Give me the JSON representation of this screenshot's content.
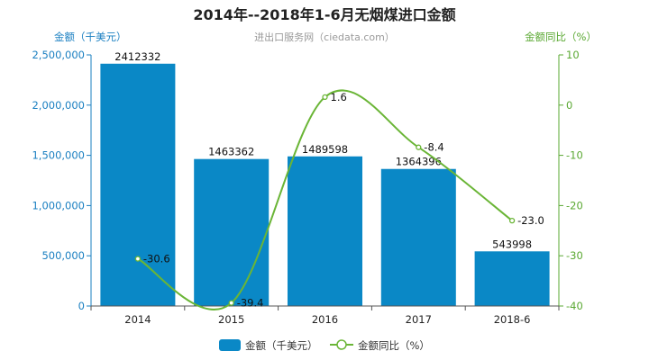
{
  "chart_data": {
    "type": "bar",
    "title": "2014年--2018年1-6月无烟煤进口金额",
    "subtitle": "进出口服务网（ciedata.com）",
    "categories": [
      "2014",
      "2015",
      "2016",
      "2017",
      "2018-6"
    ],
    "series": [
      {
        "name": "金额（千美元）",
        "type": "bar",
        "axis": "left",
        "values": [
          2412332,
          1463362,
          1489598,
          1364396,
          543998
        ],
        "color": "#0a88c6"
      },
      {
        "name": "金额同比（%）",
        "type": "line",
        "axis": "right",
        "values": [
          -30.6,
          -39.4,
          1.6,
          -8.4,
          -23.0
        ],
        "color": "#6ab536"
      }
    ],
    "y_left": {
      "label": "金额（千美元）",
      "lim": [
        0,
        2500000
      ],
      "ticks": [
        0,
        500000,
        1000000,
        1500000,
        2000000,
        2500000
      ],
      "tick_labels": [
        "0",
        "500,000",
        "1,000,000",
        "1,500,000",
        "2,000,000",
        "2,500,000"
      ],
      "color": "#1a7fc1"
    },
    "y_right": {
      "label": "金额同比（%）",
      "lim": [
        -40,
        10
      ],
      "ticks": [
        -40,
        -30,
        -20,
        -10,
        0,
        10
      ],
      "tick_labels": [
        "-40",
        "-30",
        "-20",
        "-10",
        "0",
        "10"
      ],
      "color": "#5aa832"
    },
    "bar_labels": [
      "2412332",
      "1463362",
      "1489598",
      "1364396",
      "543998"
    ],
    "line_labels": [
      "-30.6",
      "-39.4",
      "1.6",
      "-8.4",
      "-23.0"
    ],
    "grid": false,
    "legend": "bottom-center"
  }
}
